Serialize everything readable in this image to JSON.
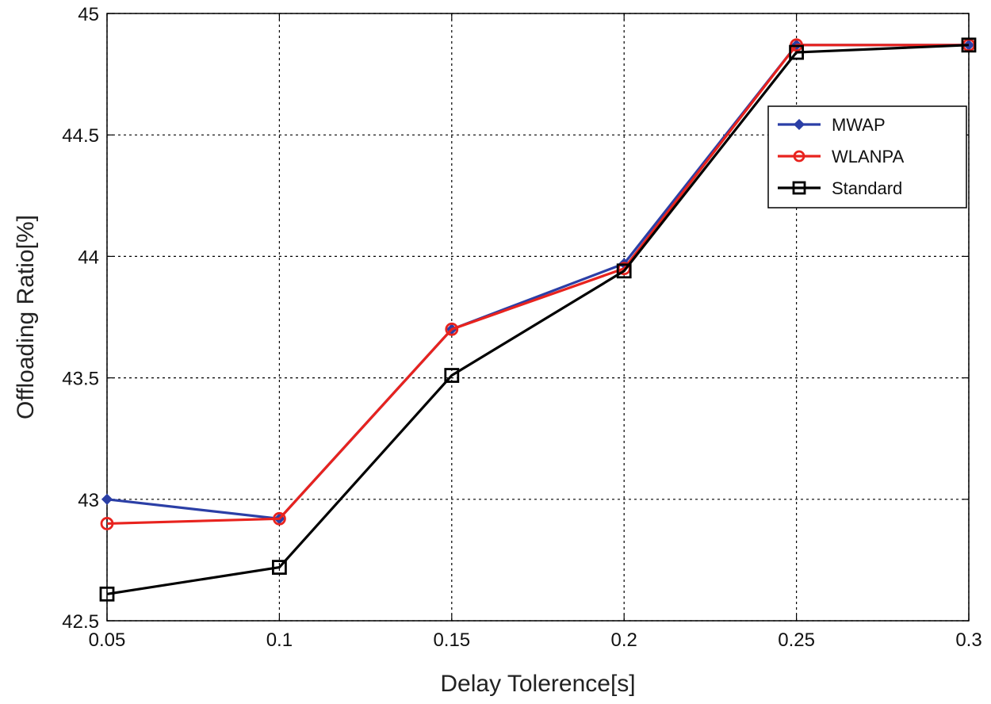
{
  "chart_data": {
    "type": "line",
    "title": "",
    "xlabel": "Delay Tolerence[s]",
    "ylabel": "Offloading Ratio[%]",
    "x": [
      0.05,
      0.1,
      0.15,
      0.2,
      0.25,
      0.3
    ],
    "xlim": [
      0.05,
      0.3
    ],
    "ylim": [
      42.5,
      45
    ],
    "xticks": [
      "0.05",
      "0.1",
      "0.15",
      "0.2",
      "0.25",
      "0.3"
    ],
    "yticks": [
      "42.5",
      "43",
      "43.5",
      "44",
      "44.5",
      "45"
    ],
    "grid": true,
    "legend_position": "top-right",
    "series": [
      {
        "name": "MWAP",
        "color": "#2b3fa6",
        "marker": "diamond",
        "values": [
          43.0,
          42.92,
          43.7,
          43.97,
          44.87,
          44.87
        ]
      },
      {
        "name": "WLANPA",
        "color": "#e8231e",
        "marker": "circle",
        "values": [
          42.9,
          42.92,
          43.7,
          43.95,
          44.87,
          44.87
        ]
      },
      {
        "name": "Standard",
        "color": "#000000",
        "marker": "square",
        "values": [
          42.61,
          42.72,
          43.51,
          43.94,
          44.84,
          44.87
        ]
      }
    ]
  }
}
